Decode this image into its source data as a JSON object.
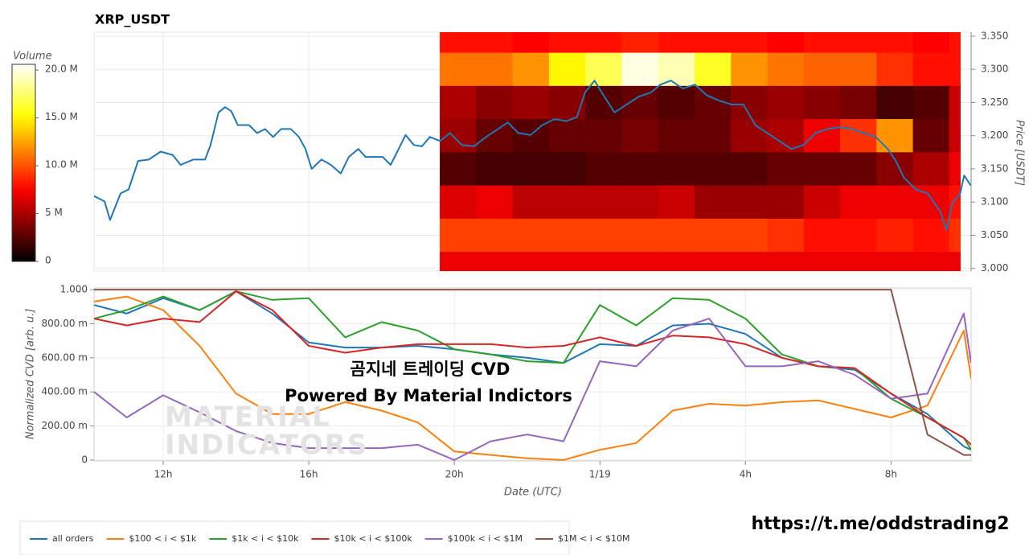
{
  "chart_data": [
    {
      "type": "line",
      "title": "XRP_USDT",
      "color": "#1f77b4",
      "x": [
        10.1,
        10.39,
        10.54,
        10.83,
        11.05,
        11.31,
        11.6,
        11.93,
        12.26,
        12.48,
        12.82,
        13.15,
        13.3,
        13.52,
        13.7,
        13.87,
        14.05,
        14.36,
        14.58,
        14.8,
        15.02,
        15.24,
        15.51,
        15.73,
        15.91,
        16.08,
        16.35,
        16.61,
        16.88,
        17.1,
        17.36,
        17.56,
        17.8,
        18.03,
        18.25,
        18.47,
        18.66,
        18.89,
        19.11,
        19.33,
        19.61,
        19.88,
        20.21,
        20.54,
        20.87,
        21.2,
        21.47,
        21.76,
        22.09,
        22.42,
        22.75,
        23.08,
        23.37,
        23.59,
        23.85,
        24.12,
        24.4,
        24.74,
        25.07,
        25.4,
        25.66,
        25.95,
        26.28,
        26.61,
        26.94,
        27.27,
        27.61,
        27.94,
        28.27,
        28.6,
        28.93,
        29.26,
        29.59,
        29.92,
        30.25,
        30.59,
        30.92,
        31.25,
        31.58,
        31.91,
        32.13,
        32.35,
        32.68,
        33.01,
        33.35,
        33.52,
        33.68,
        33.9,
        34.01,
        34.19
      ],
      "values": [
        3.109,
        3.101,
        3.073,
        3.113,
        3.119,
        3.162,
        3.164,
        3.176,
        3.171,
        3.156,
        3.164,
        3.164,
        3.186,
        3.235,
        3.243,
        3.237,
        3.216,
        3.216,
        3.204,
        3.21,
        3.198,
        3.21,
        3.21,
        3.198,
        3.18,
        3.15,
        3.164,
        3.156,
        3.143,
        3.168,
        3.18,
        3.168,
        3.168,
        3.168,
        3.156,
        3.18,
        3.201,
        3.186,
        3.184,
        3.198,
        3.192,
        3.204,
        3.186,
        3.184,
        3.198,
        3.21,
        3.22,
        3.204,
        3.201,
        3.216,
        3.225,
        3.222,
        3.228,
        3.265,
        3.283,
        3.259,
        3.235,
        3.247,
        3.259,
        3.265,
        3.277,
        3.283,
        3.271,
        3.277,
        3.261,
        3.253,
        3.247,
        3.247,
        3.216,
        3.204,
        3.192,
        3.18,
        3.186,
        3.204,
        3.21,
        3.213,
        3.21,
        3.204,
        3.198,
        3.18,
        3.162,
        3.137,
        3.119,
        3.113,
        3.086,
        3.058,
        3.098,
        3.113,
        3.14,
        3.125
      ],
      "xlim": [
        10.1,
        34.2
      ],
      "xticks": [
        12,
        16,
        20,
        24,
        28,
        32
      ],
      "ylabel": "Price [USDT]",
      "yaxis_side": "right",
      "ylim": [
        2.996,
        3.356
      ],
      "yticks": [
        {
          "value": 3.35,
          "label": "3.350"
        },
        {
          "value": 3.3,
          "label": "3.300"
        },
        {
          "value": 3.25,
          "label": "3.250"
        },
        {
          "value": 3.2,
          "label": "3.200"
        },
        {
          "value": 3.15,
          "label": "3.150"
        },
        {
          "value": 3.1,
          "label": "3.100"
        },
        {
          "value": 3.05,
          "label": "3.050"
        },
        {
          "value": 3.0,
          "label": "3.000"
        }
      ],
      "grid": true,
      "heatmap": {
        "colorscale": "hot",
        "zlabel": "Volume",
        "zlim": [
          0,
          20.6
        ],
        "zticks": [
          {
            "value": 20,
            "label": "20.0 M"
          },
          {
            "value": 15,
            "label": "15.0 M"
          },
          {
            "value": 10,
            "label": "10.0 M"
          },
          {
            "value": 5,
            "label": "5 M"
          },
          0
        ],
        "x_bins": [
          19.6,
          20.6,
          21.6,
          22.6,
          23.6,
          24.6,
          25.6,
          26.6,
          27.6,
          28.6,
          29.6,
          30.6,
          31.6,
          32.6,
          33.6,
          33.9
        ],
        "y": [
          3.35,
          3.3,
          3.25,
          3.2,
          3.15,
          3.1,
          3.05,
          3.0
        ],
        "values": [
          [
            8,
            8,
            7.5,
            8,
            8,
            8.5,
            8,
            8,
            8,
            7.5,
            8,
            8,
            8,
            7.5,
            8
          ],
          [
            11,
            11,
            12,
            15,
            17,
            20,
            19,
            16,
            12,
            11,
            10.5,
            10.5,
            9,
            8,
            8
          ],
          [
            5,
            4,
            4.5,
            4,
            2.5,
            3,
            2.5,
            3,
            4,
            4.5,
            4,
            3.5,
            2,
            2.5,
            6
          ],
          [
            4.5,
            3,
            2.5,
            3,
            3,
            3.5,
            3,
            3,
            4.5,
            5,
            7,
            9,
            12,
            3,
            6
          ],
          [
            2.5,
            2,
            2,
            2,
            2.5,
            2.5,
            2.5,
            2.5,
            2.5,
            3,
            3,
            3,
            4,
            5,
            7
          ],
          [
            6.5,
            7,
            5.5,
            5.5,
            5.5,
            5.5,
            6,
            4.5,
            4.5,
            4.5,
            6,
            7,
            7,
            7,
            8
          ],
          [
            9.5,
            9.5,
            9.5,
            9.5,
            9.5,
            9.5,
            9.5,
            9.5,
            9.5,
            9,
            8,
            8,
            8.5,
            8,
            9
          ],
          [
            7,
            7,
            7,
            7,
            7,
            7,
            7,
            7,
            7,
            7,
            7,
            7,
            7,
            7,
            7
          ]
        ]
      }
    },
    {
      "type": "line",
      "x": [
        10.1,
        11,
        12,
        13,
        14,
        15,
        16,
        17,
        18,
        19,
        20,
        21,
        22,
        23,
        24,
        25,
        26,
        27,
        28,
        29,
        30,
        31,
        32,
        33,
        34,
        34.2
      ],
      "xlim": [
        10.1,
        34.2
      ],
      "xticks": [
        {
          "value": 12,
          "label": "12h"
        },
        {
          "value": 16,
          "label": "16h"
        },
        {
          "value": 20,
          "label": "20h"
        },
        {
          "value": 24,
          "label": "1/19"
        },
        {
          "value": 28,
          "label": "4h"
        },
        {
          "value": 32,
          "label": "8h"
        }
      ],
      "xlabel": "Date (UTC)",
      "ylabel": "Normalized CVD [arb. u.]",
      "ylim": [
        -0.005,
        1.01
      ],
      "yticks": [
        0,
        {
          "value": 0.2,
          "label": "200.00 m"
        },
        {
          "value": 0.4,
          "label": "400.00 m"
        },
        {
          "value": 0.6,
          "label": "600.00 m"
        },
        {
          "value": 0.8,
          "label": "800.00 m"
        },
        {
          "value": 1,
          "label": "1.000"
        }
      ],
      "grid": true,
      "legend": "bottom-left",
      "series": [
        {
          "name": "all orders",
          "color": "#1f77b4",
          "values": [
            0.91,
            0.86,
            0.95,
            0.88,
            0.99,
            0.86,
            0.69,
            0.66,
            0.66,
            0.67,
            0.65,
            0.62,
            0.6,
            0.57,
            0.68,
            0.67,
            0.79,
            0.8,
            0.74,
            0.6,
            0.55,
            0.53,
            0.39,
            0.27,
            0.08,
            0.06
          ]
        },
        {
          "name": "$100 < i < $1k",
          "color": "#ff7f0e",
          "values": [
            0.93,
            0.96,
            0.88,
            0.67,
            0.39,
            0.27,
            0.27,
            0.34,
            0.29,
            0.22,
            0.05,
            0.03,
            0.01,
            0,
            0.06,
            0.1,
            0.29,
            0.33,
            0.32,
            0.34,
            0.35,
            0.3,
            0.25,
            0.32,
            0.76,
            0.48
          ]
        },
        {
          "name": "$1k < i < $10k",
          "color": "#2ca02c",
          "values": [
            0.83,
            0.88,
            0.96,
            0.88,
            0.99,
            0.94,
            0.95,
            0.72,
            0.81,
            0.76,
            0.65,
            0.62,
            0.58,
            0.57,
            0.91,
            0.79,
            0.95,
            0.94,
            0.83,
            0.62,
            0.55,
            0.54,
            0.36,
            0.25,
            0.13,
            0.06
          ]
        },
        {
          "name": "$10k < i < $100k",
          "color": "#d62728",
          "values": [
            0.83,
            0.79,
            0.83,
            0.81,
            0.99,
            0.88,
            0.67,
            0.63,
            0.66,
            0.68,
            0.68,
            0.68,
            0.66,
            0.67,
            0.72,
            0.67,
            0.73,
            0.72,
            0.68,
            0.6,
            0.55,
            0.54,
            0.39,
            0.25,
            0.13,
            0.09
          ]
        },
        {
          "name": "$100k < i < $1M",
          "color": "#9467bd",
          "values": [
            0.4,
            0.25,
            0.38,
            0.28,
            0.17,
            0.1,
            0.07,
            0.07,
            0.07,
            0.09,
            0,
            0.11,
            0.15,
            0.11,
            0.58,
            0.55,
            0.76,
            0.83,
            0.55,
            0.55,
            0.58,
            0.5,
            0.36,
            0.39,
            0.86,
            0.57
          ]
        },
        {
          "name": "$1M < i < $10M",
          "color": "#8c564b",
          "values": [
            1,
            1,
            1,
            1,
            1,
            1,
            1,
            1,
            1,
            1,
            1,
            1,
            1,
            1,
            1,
            1,
            1,
            1,
            1,
            1,
            1,
            1,
            1,
            0.15,
            0.03,
            0.03
          ]
        }
      ]
    }
  ],
  "overlay": {
    "line1": "곰지네 트레이딩 CVD",
    "line2": "Powered By Material Indictors"
  },
  "watermark": [
    "MATERIAL",
    "INDICATORS"
  ],
  "link": "https://t.me/oddstrading2"
}
